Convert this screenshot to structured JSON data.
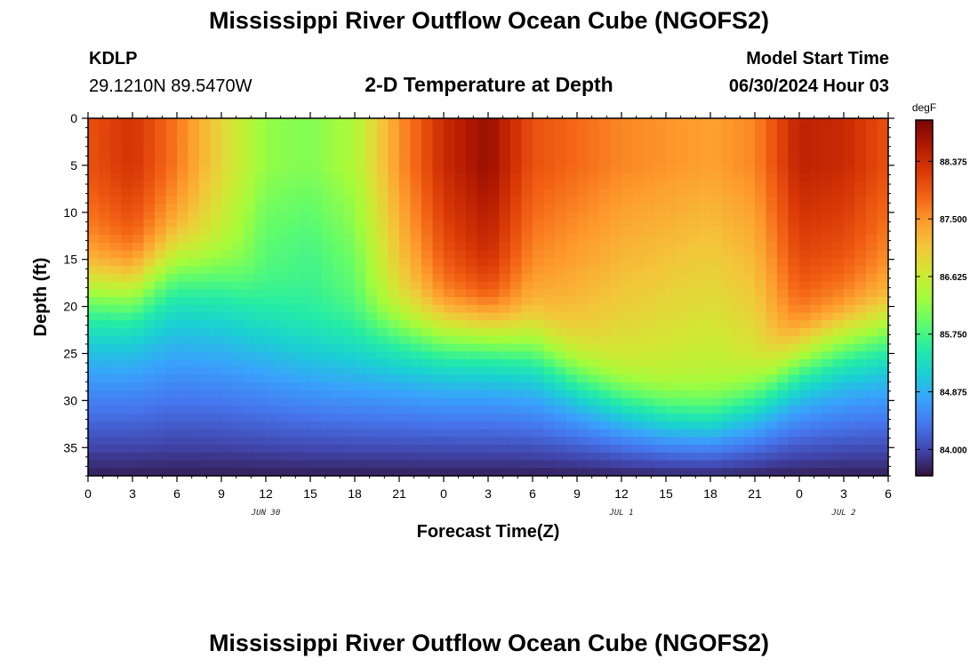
{
  "header": {
    "title": "Mississippi River Outflow Ocean Cube (NGOFS2)",
    "station_id": "KDLP",
    "station_coords": "29.1210N  89.5470W",
    "subtitle": "2-D Temperature at Depth",
    "start_label": "Model Start Time",
    "start_value": "06/30/2024 Hour 03"
  },
  "footer": {
    "title": "Mississippi River Outflow Ocean Cube (NGOFS2)"
  },
  "chart_data": {
    "type": "heatmap",
    "title": "2-D Temperature at Depth",
    "xlabel": "Forecast Time(Z)",
    "ylabel": "Depth (ft)",
    "x_tick_labels": [
      "0",
      "3",
      "6",
      "9",
      "12",
      "15",
      "18",
      "21",
      "0",
      "3",
      "6",
      "9",
      "12",
      "15",
      "18",
      "21",
      "0",
      "3",
      "6"
    ],
    "x_date_labels": [
      {
        "label": "JUN 30",
        "at_hour": 12
      },
      {
        "label": "JUL 1",
        "at_hour": 36
      },
      {
        "label": "JUL 2",
        "at_hour": 51
      }
    ],
    "xlim_hours": [
      0,
      54
    ],
    "y_ticks": [
      0,
      5,
      10,
      15,
      20,
      25,
      30,
      35
    ],
    "ylim_ft": [
      0,
      38
    ],
    "y_inverted": true,
    "colorbar": {
      "unit": "degF",
      "min": 83.6,
      "max": 89.0,
      "ticks": [
        "88.375",
        "87.500",
        "86.625",
        "85.750",
        "84.875",
        "84.000"
      ],
      "colors": [
        "#30123b",
        "#4145ab",
        "#4675ed",
        "#39a2fc",
        "#1bcfd4",
        "#24eca6",
        "#61fc6c",
        "#a4fc3b",
        "#d1e834",
        "#f3c63a",
        "#fe9b2d",
        "#f36315",
        "#d93806",
        "#b11901",
        "#7a0403"
      ]
    },
    "thermocline_depth_ft": [
      {
        "hour": 0,
        "depth": 14
      },
      {
        "hour": 3,
        "depth": 14
      },
      {
        "hour": 6,
        "depth": 11
      },
      {
        "hour": 9,
        "depth": 12
      },
      {
        "hour": 12,
        "depth": 14.5
      },
      {
        "hour": 15,
        "depth": 16.5
      },
      {
        "hour": 18,
        "depth": 17.5
      },
      {
        "hour": 21,
        "depth": 18
      },
      {
        "hour": 24,
        "depth": 18.5
      },
      {
        "hour": 27,
        "depth": 18.5
      },
      {
        "hour": 30,
        "depth": 19.5
      },
      {
        "hour": 33,
        "depth": 22.5
      },
      {
        "hour": 36,
        "depth": 25
      },
      {
        "hour": 39,
        "depth": 26.5
      },
      {
        "hour": 42,
        "depth": 27
      },
      {
        "hour": 45,
        "depth": 25
      },
      {
        "hour": 48,
        "depth": 21
      },
      {
        "hour": 51,
        "depth": 19
      },
      {
        "hour": 54,
        "depth": 18
      }
    ],
    "surface_temp_degF": [
      {
        "hour": 0,
        "value": 88.0
      },
      {
        "hour": 3,
        "value": 88.3
      },
      {
        "hour": 6,
        "value": 87.7
      },
      {
        "hour": 9,
        "value": 86.9
      },
      {
        "hour": 12,
        "value": 86.2
      },
      {
        "hour": 15,
        "value": 86.1
      },
      {
        "hour": 18,
        "value": 86.4
      },
      {
        "hour": 21,
        "value": 87.5
      },
      {
        "hour": 24,
        "value": 88.4
      },
      {
        "hour": 27,
        "value": 88.8
      },
      {
        "hour": 30,
        "value": 88.0
      },
      {
        "hour": 33,
        "value": 87.8
      },
      {
        "hour": 36,
        "value": 87.6
      },
      {
        "hour": 39,
        "value": 87.5
      },
      {
        "hour": 42,
        "value": 87.4
      },
      {
        "hour": 45,
        "value": 87.6
      },
      {
        "hour": 48,
        "value": 88.5
      },
      {
        "hour": 51,
        "value": 88.4
      },
      {
        "hour": 54,
        "value": 88.0
      }
    ],
    "bottom_temp_degF": 83.7
  }
}
